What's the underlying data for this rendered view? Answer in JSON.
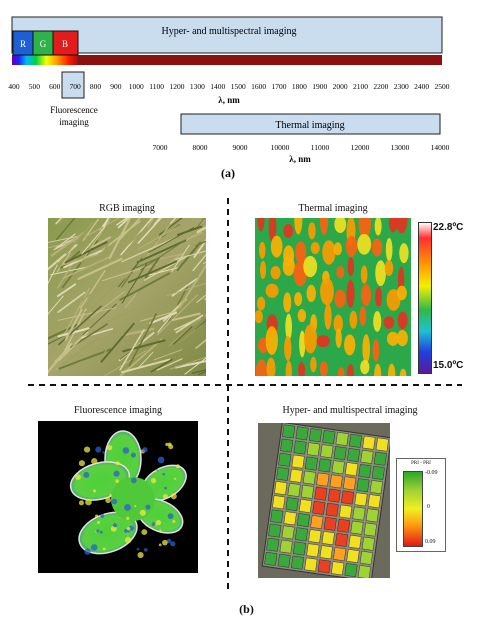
{
  "panel_a": {
    "hyper_label": "Hyper- and multispectral imaging",
    "rgb_boxes": [
      "R",
      "G",
      "B"
    ],
    "wavelength_ticks": [
      "400",
      "500",
      "600",
      "700",
      "800",
      "900",
      "1000",
      "1100",
      "1200",
      "1300",
      "1400",
      "1500",
      "1600",
      "1700",
      "1800",
      "1900",
      "2000",
      "2100",
      "2200",
      "2300",
      "2400",
      "2500"
    ],
    "axis_label": "λ, nm",
    "fluorescence_label_line1": "Fluorescence",
    "fluorescence_label_line2": "imaging",
    "thermal_label": "Thermal imaging",
    "thermal_ticks": [
      "7000",
      "8000",
      "9000",
      "10000",
      "11000",
      "12000",
      "13000",
      "14000"
    ],
    "thermal_axis_label": "λ, nm",
    "caption": "(a)"
  },
  "panel_b": {
    "rgb_title": "RGB imaging",
    "thermal_title": "Thermal imaging",
    "thermal_max": "22.8ºC",
    "thermal_min": "15.0ºC",
    "fluorescence_title": "Fluorescence imaging",
    "hyper_title": "Hyper- and multispectral imaging",
    "pri_legend_title": "PRI - PRI",
    "pri_ticks": [
      "-0.09",
      "0",
      "0.09"
    ],
    "caption": "(b)"
  },
  "colors": {
    "band_fill": "#c9ddef",
    "band_stroke": "#1f1f1f",
    "spectrum_dark_red": "#8b1010",
    "box_red": "#e31b1b",
    "box_green": "#2db34a",
    "box_blue": "#1f5fd6"
  }
}
